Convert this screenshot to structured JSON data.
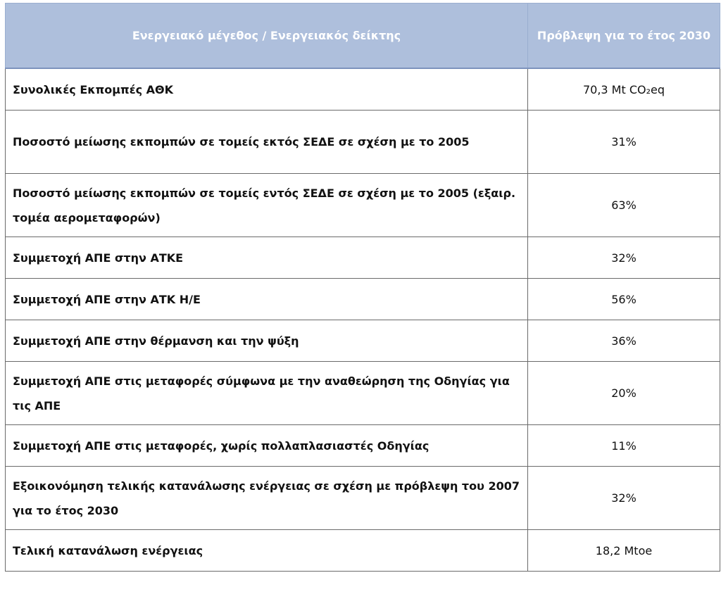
{
  "table": {
    "headers": {
      "indicator": "Ενεργειακό μέγεθος / Ενεργειακός δείκτης",
      "forecast": "Πρόβλεψη για το έτος 2030"
    },
    "rows": [
      {
        "label": "Συνολικές Εκπομπές ΑΘΚ",
        "value": "70,3 Mt CO₂eq"
      },
      {
        "label": "Ποσοστό μείωσης εκπομπών σε τομείς εκτός ΣΕΔΕ σε σχέση με το 2005",
        "value": "31%"
      },
      {
        "label": "Ποσοστό μείωσης εκπομπών σε τομείς εντός ΣΕΔΕ σε σχέση με το 2005 (εξαιρ. τομέα αερομεταφορών)",
        "value": "63%"
      },
      {
        "label": "Συμμετοχή ΑΠΕ στην ΑΤΚΕ",
        "value": "32%"
      },
      {
        "label": "Συμμετοχή ΑΠΕ στην ΑΤΚ Η/Ε",
        "value": "56%"
      },
      {
        "label": "Συμμετοχή ΑΠΕ στην θέρμανση και την ψύξη",
        "value": "36%"
      },
      {
        "label": "Συμμετοχή ΑΠΕ στις μεταφορές σύμφωνα με την αναθεώρηση της Οδηγίας για τις ΑΠΕ",
        "value": "20%"
      },
      {
        "label": "Συμμετοχή ΑΠΕ στις μεταφορές, χωρίς πολλαπλασιαστές Οδηγίας",
        "value": "11%"
      },
      {
        "label": "Εξοικονόμηση τελικής κατανάλωσης ενέργειας σε σχέση με πρόβλεψη του 2007 για το έτος 2030",
        "value": "32%"
      },
      {
        "label": "Τελική κατανάλωση ενέργειας",
        "value": "18,2 Mtoe"
      }
    ]
  }
}
